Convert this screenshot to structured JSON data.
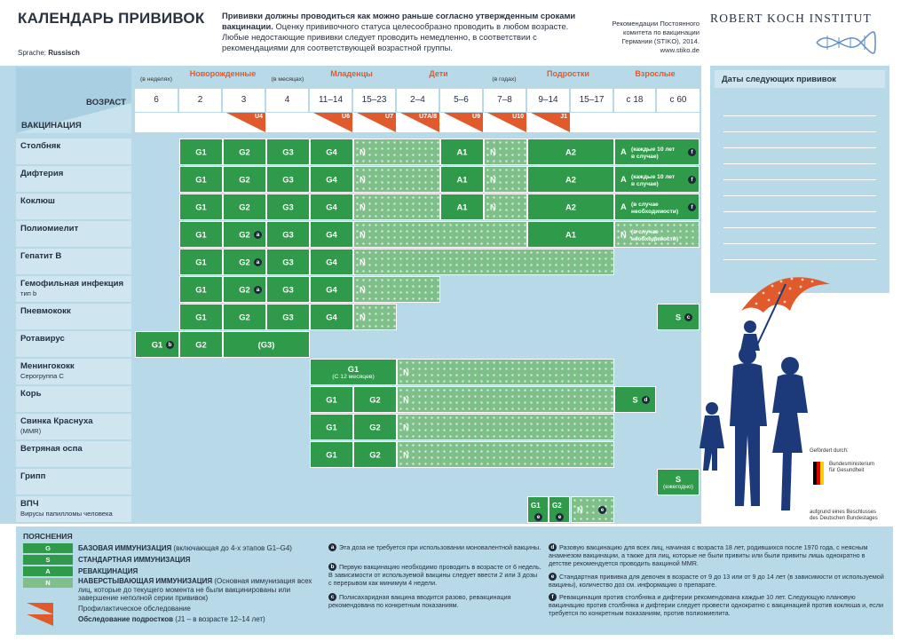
{
  "header": {
    "title": "КАЛЕНДАРЬ ПРИВИВОК",
    "lang_label": "Sprache:",
    "lang_value": "Russisch",
    "intro_bold": "Прививки должны проводиться как можно раньше согласно утвержденным сроками вакцинации.",
    "intro_rest": " Оценку прививочного статуса целесообразно проводить в любом возрасте. Любые недостающие прививки следует проводить немедленно, в соответствии с рекомендациями для соответствующей возрастной группы.",
    "rec_line1": "Рекомендации Постоянного",
    "rec_line2": "комитета по вакцинации",
    "rec_line3": "Германии (STIKO), 2014.",
    "rec_line4": "www.stiko.de",
    "institute": "ROBERT KOCH INSTITUT"
  },
  "table": {
    "age_label": "ВОЗРАСТ",
    "vaccination_label": "ВАКЦИНАЦИЯ",
    "groups": {
      "newborns": "Новорожденные",
      "infants": "Младенцы",
      "children": "Дети",
      "teens": "Подростки",
      "adults": "Взрослые"
    },
    "units": {
      "weeks": "(в неделях)",
      "months": "(в месяцах)",
      "years": "(в годах)"
    },
    "ages": [
      "6",
      "2",
      "3",
      "4",
      "11–14",
      "15–23",
      "2–4",
      "5–6",
      "7–8",
      "9–14",
      "15–17",
      "с 18",
      "с 60"
    ],
    "u_tags": [
      "U4",
      "U6",
      "U7",
      "U7A/8",
      "U9",
      "U10",
      "J1"
    ],
    "rows": [
      {
        "name": "Столбняк",
        "sub": ""
      },
      {
        "name": "Дифтерия",
        "sub": ""
      },
      {
        "name": "Коклюш",
        "sub": ""
      },
      {
        "name": "Полиомиелит",
        "sub": ""
      },
      {
        "name": "Гепатит В",
        "sub": ""
      },
      {
        "name": "Гемофильная инфекция",
        "sub": "тип b"
      },
      {
        "name": "Пневмококк",
        "sub": ""
      },
      {
        "name": "Ротавирус",
        "sub": ""
      },
      {
        "name": "Менингококк",
        "sub": "Серогруппа С"
      },
      {
        "name": "Корь",
        "sub": ""
      },
      {
        "name": "Свинка Краснуха",
        "sub": "(MMR)"
      },
      {
        "name": "Ветряная оспа",
        "sub": ""
      },
      {
        "name": "Грипп",
        "sub": ""
      },
      {
        "name": "ВПЧ",
        "sub": "Вирусы папилломы человека"
      }
    ],
    "labels": {
      "g1": "G1",
      "g2": "G2",
      "g3": "G3",
      "g4": "G4",
      "g3p": "(G3)",
      "n": "N",
      "a": "A",
      "a1": "A1",
      "a2": "A2",
      "s": "S",
      "every10": "(каждые 10 лет в случае)",
      "if_needed": "(в случае необходимости)",
      "from12m": "(С 12 месяцев)",
      "yearly": "(ежегодно)"
    }
  },
  "next_vacc": {
    "title": "Даты следующих прививок"
  },
  "illustration": {
    "funded": "Gefördert durch:",
    "ministry_1": "Bundesministerium",
    "ministry_2": "für Gesundheit",
    "basis_1": "aufgrund eines Beschlusses",
    "basis_2": "des Deutschen Bundestages"
  },
  "legend": {
    "title": "ПОЯСНЕНИЯ",
    "items": [
      {
        "box": "G",
        "color": "#2e9a4a",
        "bold": "БАЗОВАЯ ИММУНИЗАЦИЯ",
        "text": " (включающая до 4-х этапов G1–G4)"
      },
      {
        "box": "S",
        "color": "#2e9a4a",
        "bold": "СТАНДАРТНАЯ ИММУНИЗАЦИЯ",
        "text": ""
      },
      {
        "box": "A",
        "color": "#2e9a4a",
        "bold": "РЕВАКЦИНАЦИЯ",
        "text": ""
      },
      {
        "box": "N",
        "color": "#7fc08a",
        "bold": "НАВЕРСТЫВАЮЩАЯ ИММУНИЗАЦИЯ",
        "text": " (Основная иммунизация всех лиц, которые до текущего момента не были вакцинированы или завершение неполной серии прививок)"
      }
    ],
    "u_label": "Профилактическое обследование",
    "j_label": "Обследование подростков",
    "j_detail": " (J1 – в возрасте 12–14 лет)",
    "footnotes": [
      {
        "key": "a",
        "text": "Эта доза не требуется при использовании моновалентной вакцины."
      },
      {
        "key": "b",
        "text": "Первую вакцинацию необходимо проводить в возрасте от 6 недель. В зависимости от используемой вакцины следует ввести 2 или 3 дозы с перерывом как минимум 4 недели."
      },
      {
        "key": "c",
        "text": "Полисахаридная вакцина вводится разово, ревакцинация рекомендована по конкретным показаниям."
      },
      {
        "key": "d",
        "text": "Разовую вакцинацию для всех лиц, начиная с возраста 18 лет, родившихся после 1970 года, с неясным анамнезом вакцинации, а также для лиц, которые не были привиты или были привиты лишь однократно в детстве рекомендуется проводить вакциной MMR."
      },
      {
        "key": "e",
        "text": "Стандартная прививка для девочек в возрасте от 9 до 13 или от 9 до 14 лет (в зависимости от используемой вакцины), количество доз см. информацию о препарате."
      },
      {
        "key": "f",
        "text": "Ревакцинация против столбняка и дифтерии рекомендована каждые 10 лет. Следующую плановую вакцинацию против столбняка и дифтерии следует провести однократно с вакцинацией против коклюша и, если требуется по конкретным показаниям, против полиомиелита."
      }
    ]
  },
  "colors": {
    "green": "#2e9a4a",
    "green_light": "#7fc08a",
    "blue_bg": "#b8d9e8",
    "orange": "#e05a2c",
    "navy": "#1c3a7a"
  }
}
